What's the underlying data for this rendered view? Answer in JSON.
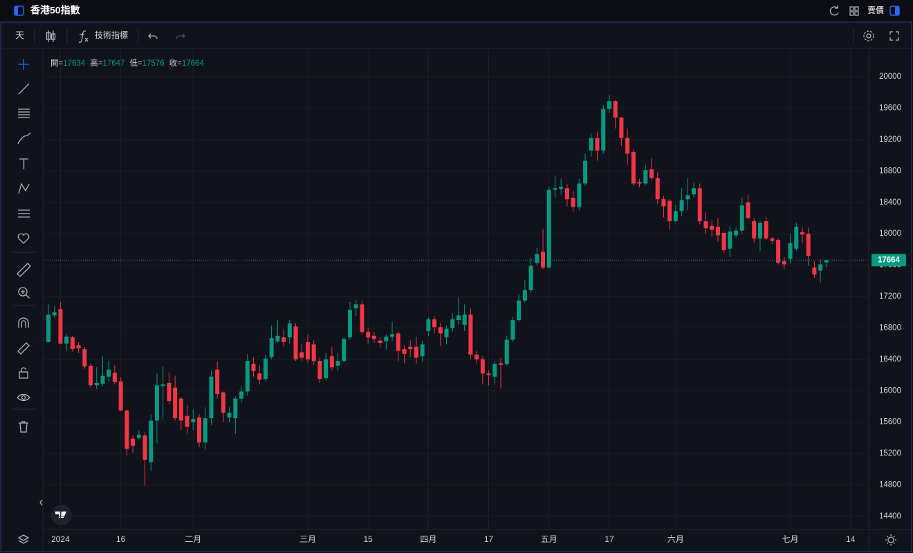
{
  "ui": {
    "symbol_title": "香港50指數",
    "price_side": "賣價",
    "interval": "天",
    "indicators": "技術指標"
  },
  "chart_data": {
    "type": "candlestick",
    "ohlc_separator": "=",
    "up_color": "#089981",
    "down_color": "#f23645",
    "grid": true,
    "ylim": [
      14230,
      20340
    ],
    "yticks": [
      14400,
      14800,
      15200,
      15600,
      16000,
      16400,
      16800,
      17200,
      17600,
      18000,
      18400,
      18800,
      19200,
      19600,
      20000
    ],
    "categories": [
      null,
      null,
      "2024",
      null,
      null,
      null,
      null,
      null,
      null,
      null,
      null,
      null,
      "16",
      null,
      null,
      null,
      null,
      null,
      null,
      null,
      null,
      null,
      null,
      null,
      "二月",
      null,
      null,
      null,
      null,
      null,
      null,
      null,
      null,
      null,
      null,
      null,
      null,
      null,
      null,
      null,
      null,
      null,
      null,
      "三月",
      null,
      null,
      null,
      null,
      null,
      null,
      null,
      null,
      null,
      "15",
      null,
      null,
      null,
      null,
      null,
      null,
      null,
      null,
      null,
      "四月",
      null,
      null,
      null,
      null,
      null,
      null,
      null,
      null,
      null,
      "17",
      null,
      null,
      null,
      null,
      null,
      null,
      null,
      null,
      null,
      "五月",
      null,
      null,
      null,
      null,
      null,
      null,
      null,
      null,
      null,
      "17",
      null,
      null,
      null,
      null,
      null,
      null,
      null,
      null,
      null,
      null,
      "六月",
      null,
      null,
      null,
      null,
      null,
      null,
      null,
      null,
      null,
      null,
      null,
      null,
      null,
      null,
      null,
      null,
      null,
      null,
      "七月",
      null,
      null,
      null,
      null,
      null,
      null,
      null,
      null,
      null,
      "14"
    ],
    "series": [
      {
        "name": "開",
        "values": [
          16620,
          16960,
          17040,
          16600,
          16680,
          16580,
          16530,
          16320,
          16070,
          16090,
          16180,
          16230,
          16120,
          15750,
          15390,
          15400,
          15430,
          15090,
          15620,
          16060,
          16100,
          16040,
          15900,
          15680,
          15600,
          15660,
          15340,
          15650,
          16270,
          15980,
          15660,
          15650,
          15900,
          15990,
          16340,
          16220,
          16150,
          16430,
          16630,
          16680,
          16680,
          16820,
          16490,
          16620,
          16590,
          16380,
          16160,
          16440,
          16320,
          16380,
          16680,
          17050,
          17100,
          16750,
          16700,
          16640,
          16630,
          16690,
          16730,
          16530,
          16560,
          16560,
          16440,
          16760,
          16910,
          16810,
          16680,
          16800,
          16900,
          16840,
          16970,
          16460,
          16400,
          16220,
          16180,
          16350,
          16340,
          16650,
          16900,
          17150,
          17280,
          17630,
          17770,
          17570,
          18560,
          18570,
          18580,
          18460,
          18340,
          18640,
          19060,
          19220,
          19060,
          19590,
          19690,
          19480,
          19220,
          19040,
          18660,
          18640,
          18820,
          18710,
          18440,
          18420,
          18160,
          18290,
          18440,
          18500,
          18580,
          18160,
          18100,
          18090,
          18010,
          17810,
          17980,
          18040,
          18400,
          18160,
          17940,
          18160,
          17940,
          17920,
          17650,
          17680,
          17810,
          18020,
          18000,
          17570,
          17530,
          17634,
          null,
          null,
          null,
          null
        ]
      },
      {
        "name": "高",
        "values": [
          17100,
          17080,
          17130,
          16720,
          16700,
          16620,
          16560,
          16350,
          16300,
          16440,
          16380,
          16330,
          16170,
          15760,
          15430,
          15500,
          15470,
          15700,
          16220,
          16310,
          16230,
          16190,
          15920,
          15820,
          15760,
          15700,
          15790,
          16260,
          16370,
          15990,
          15790,
          15930,
          16060,
          16470,
          16430,
          16330,
          16460,
          16830,
          16900,
          16780,
          16900,
          16860,
          16600,
          16720,
          16640,
          16420,
          16480,
          16560,
          16480,
          16690,
          17130,
          17160,
          17150,
          16800,
          16750,
          16680,
          16720,
          16880,
          16750,
          16580,
          16640,
          16690,
          16640,
          16940,
          16950,
          16860,
          16830,
          16990,
          17190,
          17100,
          17050,
          16510,
          16440,
          16260,
          16380,
          16420,
          16700,
          16940,
          17230,
          17410,
          17700,
          17820,
          18060,
          18600,
          18740,
          18700,
          18630,
          18550,
          18700,
          19020,
          19270,
          19300,
          19640,
          19770,
          19700,
          19490,
          19340,
          19070,
          18700,
          18880,
          18960,
          18780,
          18480,
          18440,
          18370,
          18580,
          18710,
          18650,
          18640,
          18270,
          18170,
          18200,
          18030,
          18100,
          18080,
          18460,
          18500,
          18200,
          18170,
          18210,
          17960,
          17940,
          17700,
          18000,
          18140,
          18080,
          18080,
          17650,
          17670,
          17647,
          null,
          null,
          null,
          null
        ]
      },
      {
        "name": "低",
        "values": [
          16620,
          16930,
          16590,
          16510,
          16500,
          16480,
          16280,
          16040,
          16020,
          16060,
          16110,
          16080,
          15740,
          15170,
          15210,
          15380,
          14790,
          14980,
          15330,
          15630,
          15830,
          15620,
          15500,
          15450,
          15500,
          15280,
          15250,
          15560,
          15900,
          15600,
          15600,
          15450,
          15850,
          15940,
          16180,
          16080,
          16120,
          16400,
          16610,
          16560,
          16600,
          16380,
          16380,
          16360,
          16330,
          16100,
          16130,
          16260,
          16250,
          16360,
          16650,
          16950,
          16720,
          16600,
          16610,
          16550,
          16530,
          16630,
          16370,
          16350,
          16430,
          16350,
          16370,
          16700,
          16730,
          16570,
          16590,
          16750,
          16840,
          16760,
          16400,
          16350,
          16080,
          16070,
          16080,
          16030,
          16310,
          16620,
          16880,
          17120,
          17250,
          17600,
          17550,
          17560,
          18460,
          18500,
          18350,
          18280,
          18300,
          18610,
          18980,
          18930,
          19020,
          19540,
          19340,
          19120,
          18880,
          18610,
          18590,
          18620,
          18680,
          18380,
          18210,
          18050,
          18140,
          18230,
          18300,
          18460,
          18120,
          18000,
          17960,
          17900,
          17760,
          17700,
          17950,
          17990,
          18180,
          17890,
          17780,
          17920,
          17870,
          17610,
          17550,
          17620,
          17780,
          17880,
          17590,
          17440,
          17380,
          17576,
          null,
          null,
          null,
          null
        ]
      },
      {
        "name": "收",
        "values": [
          16970,
          17000,
          16600,
          16690,
          16530,
          16540,
          16310,
          16070,
          16100,
          16190,
          16270,
          16110,
          15750,
          15260,
          15300,
          15440,
          15120,
          15620,
          16070,
          16080,
          15870,
          15650,
          15620,
          15540,
          15640,
          15340,
          15650,
          16180,
          15960,
          15720,
          15720,
          15900,
          15990,
          16380,
          16250,
          16140,
          16410,
          16670,
          16700,
          16620,
          16860,
          16400,
          16420,
          16400,
          16380,
          16150,
          16400,
          16300,
          16380,
          16660,
          17030,
          17100,
          16750,
          16680,
          16660,
          16610,
          16690,
          16720,
          16510,
          16470,
          16530,
          16420,
          16590,
          16910,
          16810,
          16730,
          16790,
          16910,
          16960,
          16970,
          16460,
          16400,
          16220,
          16200,
          16340,
          16330,
          16650,
          16900,
          17150,
          17280,
          17590,
          17740,
          17570,
          18560,
          18580,
          18600,
          18440,
          18340,
          18640,
          18930,
          19220,
          19060,
          19590,
          19690,
          19480,
          19220,
          19020,
          18640,
          18640,
          18810,
          18710,
          18440,
          18350,
          18160,
          18290,
          18430,
          18490,
          18580,
          18160,
          18070,
          18050,
          17980,
          17790,
          18030,
          18040,
          18360,
          18200,
          17940,
          18140,
          17940,
          17910,
          17630,
          17610,
          17880,
          18090,
          17990,
          17720,
          17480,
          17610,
          17664,
          null,
          null,
          null,
          null
        ]
      }
    ]
  }
}
